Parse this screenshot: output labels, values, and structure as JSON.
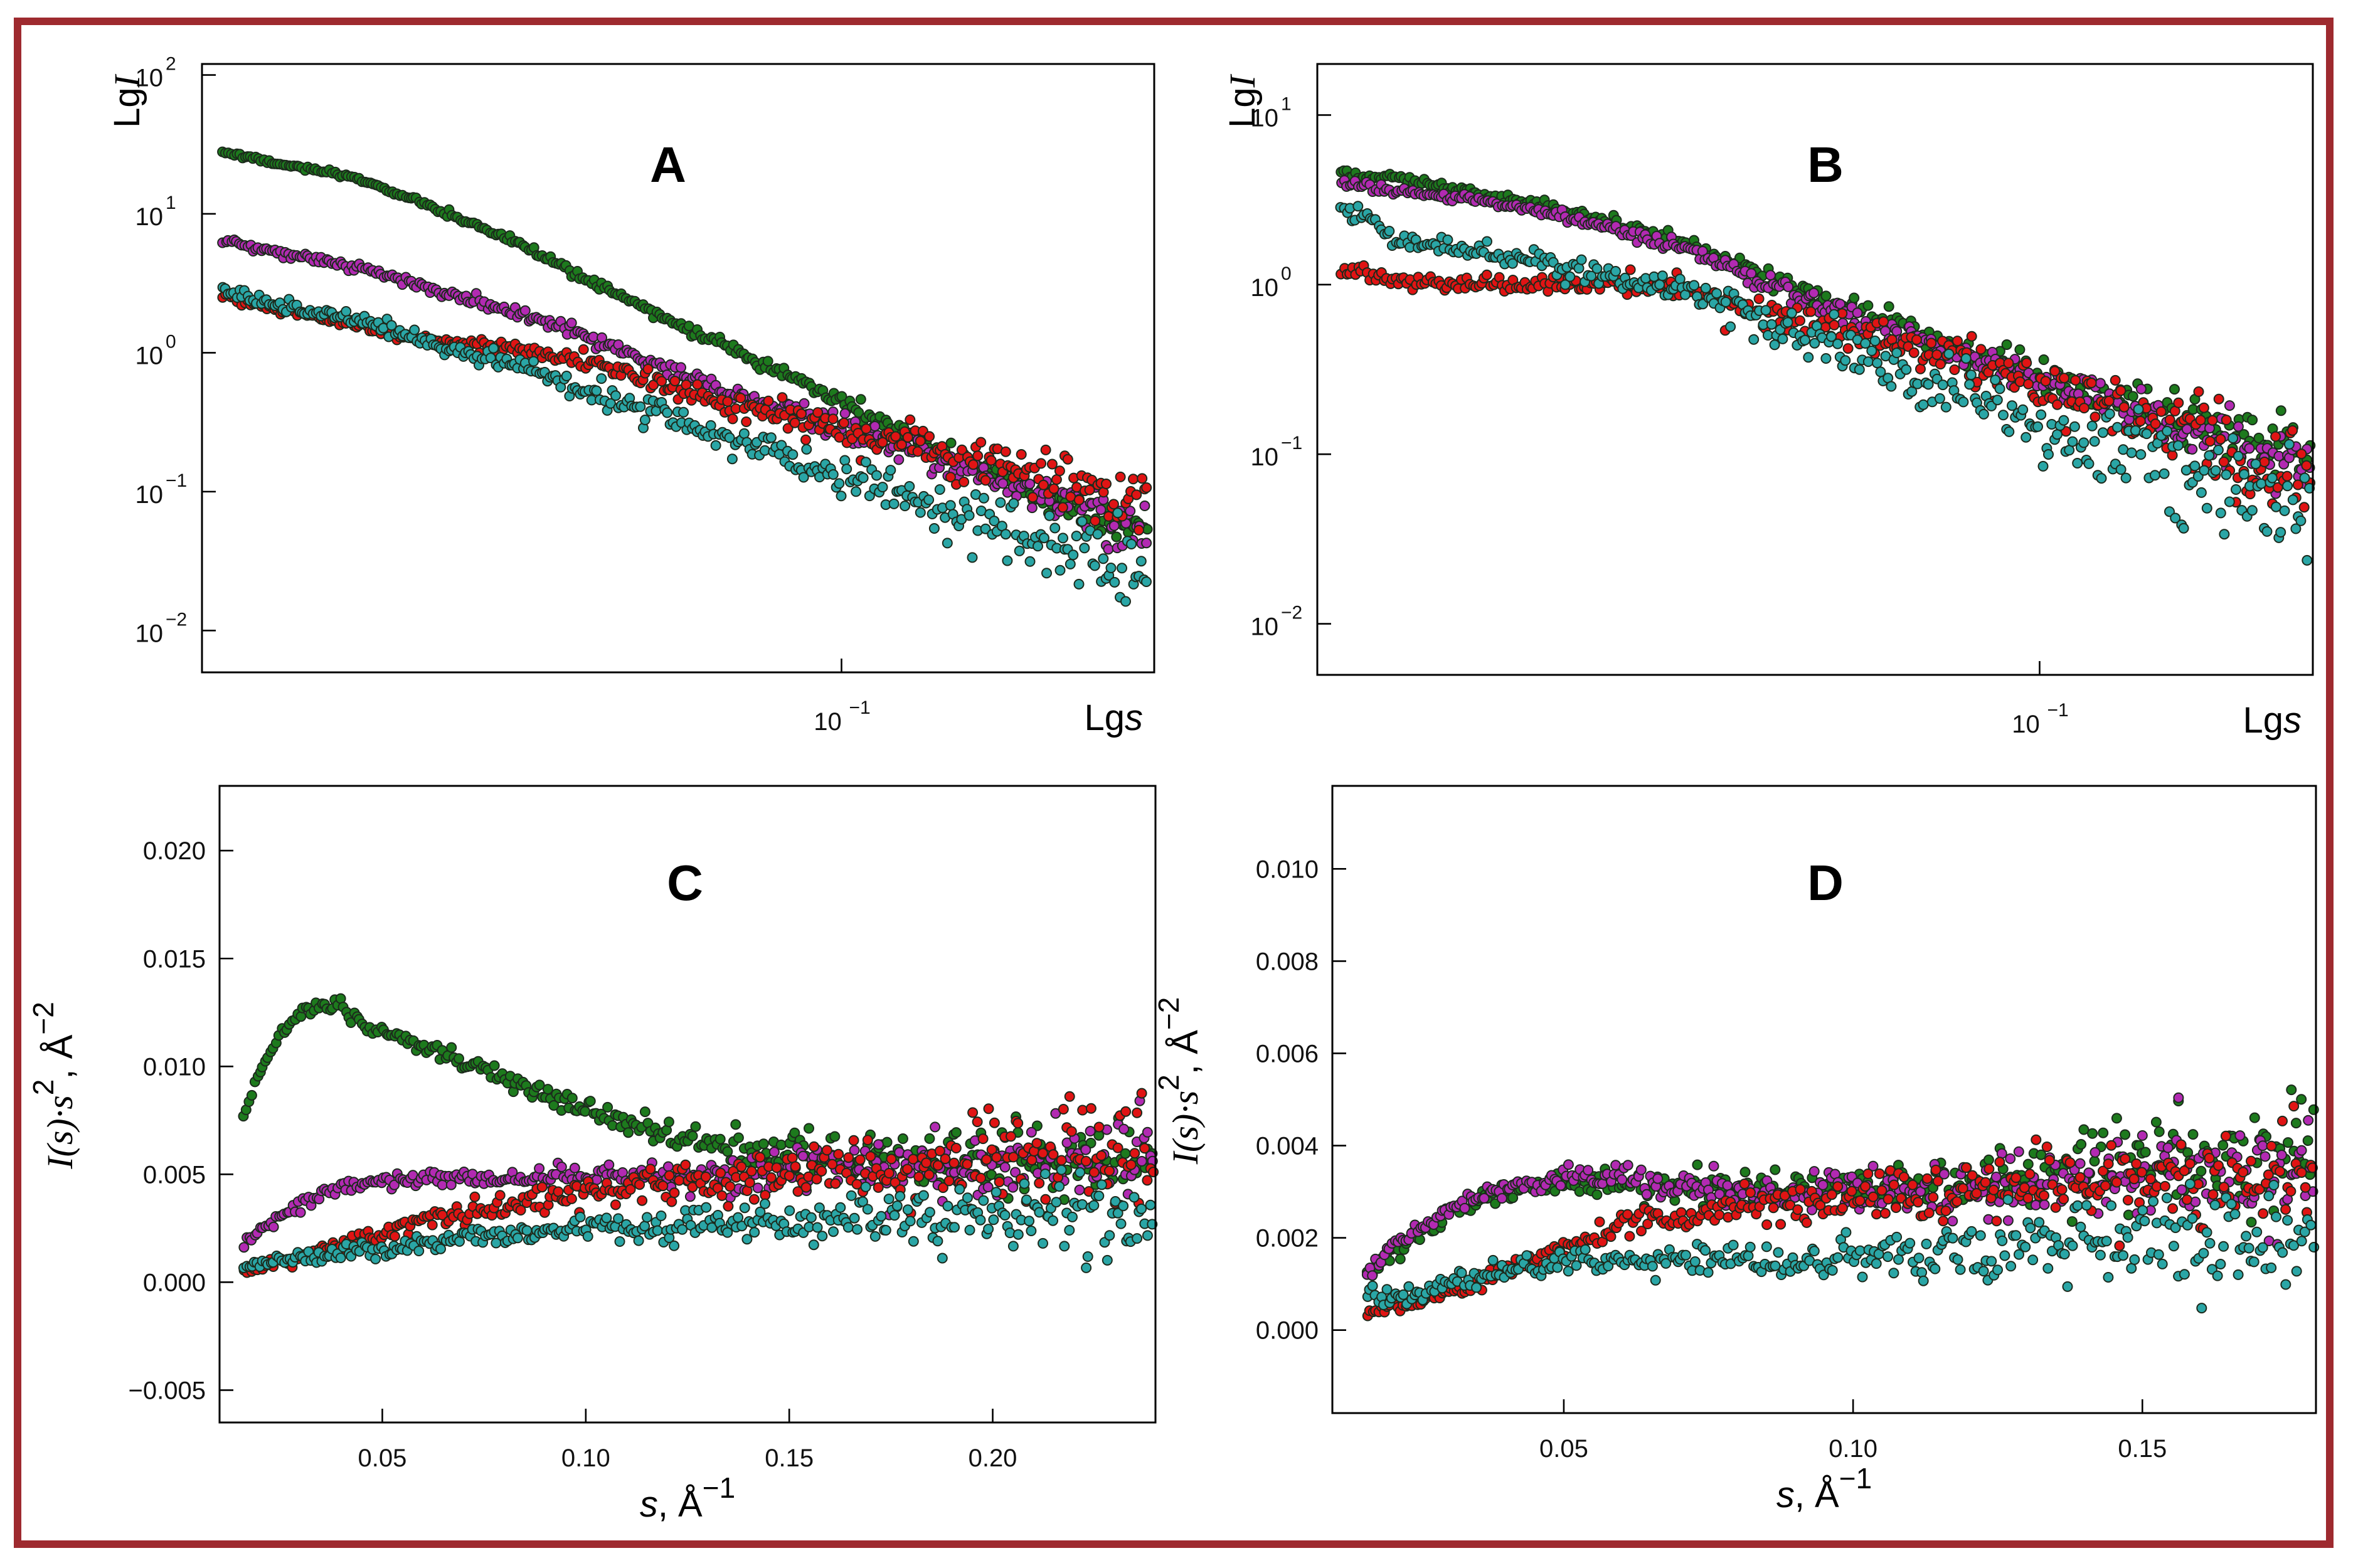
{
  "colors": {
    "frame": "#9e2a2f",
    "series": {
      "green": "#1d7a1d",
      "magenta": "#b22ab2",
      "red": "#e01414",
      "cyan": "#2aa6a6"
    }
  },
  "chart_data": [
    {
      "panel": "A",
      "type": "scatter",
      "title": "A",
      "xscale": "log",
      "yscale": "log",
      "xlim": [
        0.016,
        0.245
      ],
      "ylim": [
        0.005,
        120
      ],
      "xlabel": "Lgs",
      "ylabel": "LgI",
      "xticks": [
        {
          "value": 0.1,
          "base": "10",
          "exp": "−1"
        }
      ],
      "yticks": [
        {
          "value": 100,
          "base": "10",
          "exp": "2"
        },
        {
          "value": 10,
          "base": "10",
          "exp": "1"
        },
        {
          "value": 1,
          "base": "10",
          "exp": "0"
        },
        {
          "value": 0.1,
          "base": "10",
          "exp": "−1"
        },
        {
          "value": 0.01,
          "base": "10",
          "exp": "−2"
        }
      ],
      "series": [
        {
          "name": "green",
          "color": "#1d7a1d",
          "noise": 0.03,
          "points": [
            [
              0.017,
              28
            ],
            [
              0.02,
              23
            ],
            [
              0.025,
              18
            ],
            [
              0.03,
              12
            ],
            [
              0.04,
              6
            ],
            [
              0.05,
              3
            ],
            [
              0.07,
              1.2
            ],
            [
              0.1,
              0.45
            ],
            [
              0.14,
              0.17
            ],
            [
              0.19,
              0.08
            ],
            [
              0.24,
              0.05
            ]
          ]
        },
        {
          "name": "magenta",
          "color": "#b22ab2",
          "noise": 0.05,
          "points": [
            [
              0.017,
              6.5
            ],
            [
              0.02,
              5.2
            ],
            [
              0.025,
              4.2
            ],
            [
              0.03,
              3.0
            ],
            [
              0.04,
              1.9
            ],
            [
              0.05,
              1.2
            ],
            [
              0.07,
              0.55
            ],
            [
              0.1,
              0.3
            ],
            [
              0.14,
              0.15
            ],
            [
              0.19,
              0.08
            ],
            [
              0.24,
              0.05
            ]
          ]
        },
        {
          "name": "red",
          "color": "#e01414",
          "noise": 0.06,
          "points": [
            [
              0.017,
              2.6
            ],
            [
              0.02,
              2.0
            ],
            [
              0.025,
              1.6
            ],
            [
              0.03,
              1.25
            ],
            [
              0.04,
              1.05
            ],
            [
              0.05,
              0.8
            ],
            [
              0.07,
              0.45
            ],
            [
              0.1,
              0.28
            ],
            [
              0.14,
              0.17
            ],
            [
              0.19,
              0.12
            ],
            [
              0.24,
              0.08
            ]
          ]
        },
        {
          "name": "cyan",
          "color": "#2aa6a6",
          "noise": 0.08,
          "points": [
            [
              0.017,
              2.8
            ],
            [
              0.02,
              2.2
            ],
            [
              0.025,
              1.7
            ],
            [
              0.03,
              1.2
            ],
            [
              0.04,
              0.8
            ],
            [
              0.05,
              0.5
            ],
            [
              0.07,
              0.25
            ],
            [
              0.1,
              0.13
            ],
            [
              0.14,
              0.07
            ],
            [
              0.19,
              0.04
            ],
            [
              0.24,
              0.025
            ]
          ]
        }
      ]
    },
    {
      "panel": "B",
      "type": "scatter",
      "title": "B",
      "xscale": "log",
      "yscale": "log",
      "xlim": [
        0.016,
        0.2
      ],
      "ylim": [
        0.005,
        20
      ],
      "xlabel": "Lgs",
      "ylabel": "LgI",
      "xticks": [
        {
          "value": 0.1,
          "base": "10",
          "exp": "−1"
        }
      ],
      "yticks": [
        {
          "value": 10,
          "base": "10",
          "exp": "1"
        },
        {
          "value": 1,
          "base": "10",
          "exp": "0"
        },
        {
          "value": 0.1,
          "base": "10",
          "exp": "−1"
        },
        {
          "value": 0.01,
          "base": "10",
          "exp": "−2"
        }
      ],
      "series": [
        {
          "name": "green",
          "color": "#1d7a1d",
          "noise": 0.05,
          "points": [
            [
              0.017,
              4.5
            ],
            [
              0.02,
              4.2
            ],
            [
              0.025,
              3.3
            ],
            [
              0.03,
              2.8
            ],
            [
              0.04,
              1.8
            ],
            [
              0.05,
              1.1
            ],
            [
              0.07,
              0.55
            ],
            [
              0.1,
              0.3
            ],
            [
              0.14,
              0.17
            ],
            [
              0.2,
              0.1
            ]
          ]
        },
        {
          "name": "magenta",
          "color": "#b22ab2",
          "noise": 0.05,
          "points": [
            [
              0.017,
              4.0
            ],
            [
              0.02,
              3.5
            ],
            [
              0.025,
              3.1
            ],
            [
              0.03,
              2.5
            ],
            [
              0.04,
              1.7
            ],
            [
              0.05,
              1.0
            ],
            [
              0.07,
              0.5
            ],
            [
              0.1,
              0.28
            ],
            [
              0.14,
              0.15
            ],
            [
              0.2,
              0.08
            ]
          ]
        },
        {
          "name": "red",
          "color": "#e01414",
          "noise": 0.08,
          "points": [
            [
              0.017,
              1.2
            ],
            [
              0.02,
              1.05
            ],
            [
              0.025,
              1.0
            ],
            [
              0.03,
              1.05
            ],
            [
              0.04,
              0.95
            ],
            [
              0.05,
              0.7
            ],
            [
              0.07,
              0.45
            ],
            [
              0.1,
              0.25
            ],
            [
              0.14,
              0.14
            ],
            [
              0.2,
              0.08
            ]
          ]
        },
        {
          "name": "cyan",
          "color": "#2aa6a6",
          "noise": 0.1,
          "points": [
            [
              0.017,
              3.0
            ],
            [
              0.02,
              1.8
            ],
            [
              0.025,
              1.5
            ],
            [
              0.03,
              1.3
            ],
            [
              0.04,
              0.95
            ],
            [
              0.05,
              0.6
            ],
            [
              0.07,
              0.3
            ],
            [
              0.1,
              0.14
            ],
            [
              0.14,
              0.08
            ],
            [
              0.2,
              0.04
            ]
          ]
        }
      ]
    },
    {
      "panel": "C",
      "type": "scatter",
      "title": "C",
      "xscale": "linear",
      "yscale": "linear",
      "xlim": [
        0.01,
        0.24
      ],
      "ylim": [
        -0.0065,
        0.023
      ],
      "xlabel_math": "s",
      "xlabel_rest": ", Å",
      "xlabel_sup": "−1",
      "ylabel_math": "I(s)·s",
      "ylabel_sup1": "2",
      "ylabel_rest": ", Å",
      "ylabel_sup2": "−2",
      "xticks": [
        {
          "value": 0.05,
          "label": "0.05"
        },
        {
          "value": 0.1,
          "label": "0.10"
        },
        {
          "value": 0.15,
          "label": "0.15"
        },
        {
          "value": 0.2,
          "label": "0.20"
        }
      ],
      "yticks": [
        {
          "value": 0.02,
          "label": "0.020"
        },
        {
          "value": 0.015,
          "label": "0.015"
        },
        {
          "value": 0.01,
          "label": "0.010"
        },
        {
          "value": 0.005,
          "label": "0.005"
        },
        {
          "value": 0.0,
          "label": "0.000"
        },
        {
          "value": -0.005,
          "label": "−0.005"
        }
      ],
      "series": [
        {
          "name": "green",
          "color": "#1d7a1d",
          "noise": 0.0006,
          "points": [
            [
              0.016,
              0.0078
            ],
            [
              0.02,
              0.0098
            ],
            [
              0.025,
              0.0115
            ],
            [
              0.03,
              0.0125
            ],
            [
              0.035,
              0.0128
            ],
            [
              0.04,
              0.0126
            ],
            [
              0.05,
              0.0116
            ],
            [
              0.07,
              0.0102
            ],
            [
              0.09,
              0.0087
            ],
            [
              0.11,
              0.0073
            ],
            [
              0.13,
              0.0063
            ],
            [
              0.15,
              0.0058
            ],
            [
              0.17,
              0.0056
            ],
            [
              0.2,
              0.0055
            ],
            [
              0.24,
              0.0056
            ]
          ]
        },
        {
          "name": "magenta",
          "color": "#b22ab2",
          "noise": 0.0006,
          "points": [
            [
              0.016,
              0.0017
            ],
            [
              0.02,
              0.0024
            ],
            [
              0.03,
              0.0037
            ],
            [
              0.04,
              0.0044
            ],
            [
              0.05,
              0.0047
            ],
            [
              0.07,
              0.0048
            ],
            [
              0.1,
              0.0049
            ],
            [
              0.13,
              0.005
            ],
            [
              0.16,
              0.0052
            ],
            [
              0.2,
              0.0054
            ],
            [
              0.24,
              0.0055
            ]
          ]
        },
        {
          "name": "red",
          "color": "#e01414",
          "noise": 0.0008,
          "points": [
            [
              0.016,
              0.0006
            ],
            [
              0.03,
              0.0012
            ],
            [
              0.05,
              0.0023
            ],
            [
              0.07,
              0.0033
            ],
            [
              0.1,
              0.0041
            ],
            [
              0.13,
              0.0047
            ],
            [
              0.16,
              0.0051
            ],
            [
              0.2,
              0.0055
            ],
            [
              0.24,
              0.0058
            ]
          ]
        },
        {
          "name": "cyan",
          "color": "#2aa6a6",
          "noise": 0.0006,
          "points": [
            [
              0.016,
              0.0007
            ],
            [
              0.03,
              0.0011
            ],
            [
              0.05,
              0.0016
            ],
            [
              0.07,
              0.002
            ],
            [
              0.1,
              0.0024
            ],
            [
              0.13,
              0.0027
            ],
            [
              0.16,
              0.003
            ],
            [
              0.2,
              0.0031
            ],
            [
              0.24,
              0.0029
            ]
          ]
        }
      ]
    },
    {
      "panel": "D",
      "type": "scatter",
      "title": "D",
      "xscale": "linear",
      "yscale": "linear",
      "xlim": [
        0.01,
        0.18
      ],
      "ylim": [
        -0.0018,
        0.0118
      ],
      "xlabel_math": "s",
      "xlabel_rest": ", Å",
      "xlabel_sup": "−1",
      "ylabel_math": "I(s)·s",
      "ylabel_sup1": "2",
      "ylabel_rest": ", Å",
      "ylabel_sup2": "−2",
      "xticks": [
        {
          "value": 0.05,
          "label": "0.05"
        },
        {
          "value": 0.1,
          "label": "0.10"
        },
        {
          "value": 0.15,
          "label": "0.15"
        }
      ],
      "yticks": [
        {
          "value": 0.01,
          "label": "0.010"
        },
        {
          "value": 0.008,
          "label": "0.008"
        },
        {
          "value": 0.006,
          "label": "0.006"
        },
        {
          "value": 0.004,
          "label": "0.004"
        },
        {
          "value": 0.002,
          "label": "0.002"
        },
        {
          "value": 0.0,
          "label": "0.000"
        }
      ],
      "series": [
        {
          "name": "green",
          "color": "#1d7a1d",
          "noise": 0.00035,
          "points": [
            [
              0.016,
              0.0011
            ],
            [
              0.02,
              0.0016
            ],
            [
              0.03,
              0.0025
            ],
            [
              0.04,
              0.003
            ],
            [
              0.05,
              0.0032
            ],
            [
              0.06,
              0.0032
            ],
            [
              0.08,
              0.003
            ],
            [
              0.1,
              0.003
            ],
            [
              0.12,
              0.0032
            ],
            [
              0.14,
              0.0036
            ],
            [
              0.16,
              0.0038
            ],
            [
              0.18,
              0.004
            ]
          ]
        },
        {
          "name": "magenta",
          "color": "#b22ab2",
          "noise": 0.00035,
          "points": [
            [
              0.016,
              0.0012
            ],
            [
              0.02,
              0.0018
            ],
            [
              0.03,
              0.0026
            ],
            [
              0.04,
              0.0031
            ],
            [
              0.05,
              0.0033
            ],
            [
              0.06,
              0.0033
            ],
            [
              0.08,
              0.003
            ],
            [
              0.1,
              0.003
            ],
            [
              0.12,
              0.003
            ],
            [
              0.14,
              0.0033
            ],
            [
              0.16,
              0.0034
            ],
            [
              0.18,
              0.0033
            ]
          ]
        },
        {
          "name": "red",
          "color": "#e01414",
          "noise": 0.00035,
          "points": [
            [
              0.016,
              0.0003
            ],
            [
              0.02,
              0.0005
            ],
            [
              0.03,
              0.0008
            ],
            [
              0.04,
              0.0013
            ],
            [
              0.05,
              0.0018
            ],
            [
              0.06,
              0.0023
            ],
            [
              0.08,
              0.0027
            ],
            [
              0.1,
              0.0029
            ],
            [
              0.12,
              0.003
            ],
            [
              0.14,
              0.0032
            ],
            [
              0.16,
              0.0033
            ],
            [
              0.18,
              0.0034
            ]
          ]
        },
        {
          "name": "cyan",
          "color": "#2aa6a6",
          "noise": 0.00035,
          "points": [
            [
              0.016,
              0.0008
            ],
            [
              0.02,
              0.0007
            ],
            [
              0.03,
              0.001
            ],
            [
              0.04,
              0.0013
            ],
            [
              0.05,
              0.0015
            ],
            [
              0.06,
              0.0015
            ],
            [
              0.08,
              0.0015
            ],
            [
              0.1,
              0.0016
            ],
            [
              0.12,
              0.0017
            ],
            [
              0.14,
              0.0019
            ],
            [
              0.16,
              0.002
            ],
            [
              0.18,
              0.0018
            ]
          ]
        }
      ]
    }
  ]
}
